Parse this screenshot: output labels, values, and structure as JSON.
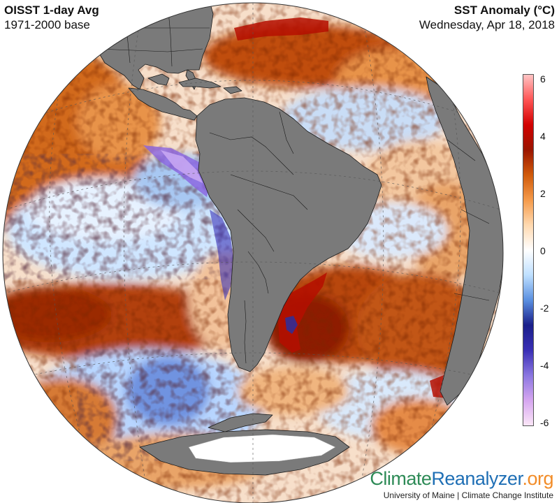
{
  "header": {
    "title": "OISST 1-day Avg",
    "subtitle": "1971-2000 base",
    "variable": "SST Anomaly (°C)",
    "date": "Wednesday, Apr 18, 2018"
  },
  "colorbar": {
    "ticks": [
      "6",
      "4",
      "2",
      "0",
      "-2",
      "-4",
      "-6"
    ],
    "range": [
      -6,
      6
    ],
    "stops": [
      "#fbe6f7",
      "#d6a6f0",
      "#8a76e0",
      "#3a2fb5",
      "#1a1f8a",
      "#5a8fe0",
      "#bfe0ff",
      "#ffffff",
      "#ffd9b0",
      "#f59a4a",
      "#d05a0a",
      "#9a1500",
      "#d20000",
      "#ff5555",
      "#ffc5c5"
    ]
  },
  "branding": {
    "part1": "Climate",
    "part2": "Reanalyzer",
    "part3": ".org",
    "credit": "University of Maine | Climate Change Institute"
  },
  "map": {
    "land_color": "#7a7a7a",
    "ice_color": "#ffffff",
    "background_ocean": "#f7dfca"
  }
}
